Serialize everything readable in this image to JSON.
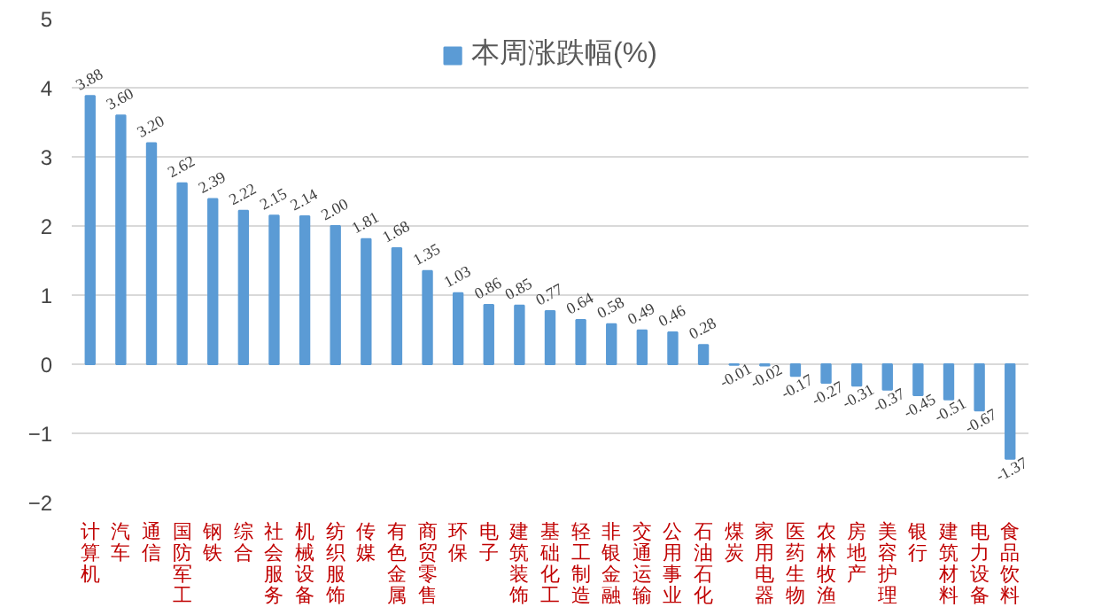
{
  "chart_data": {
    "type": "bar",
    "categories": [
      "计算机",
      "汽车",
      "通信",
      "国防军工",
      "钢铁",
      "综合",
      "社会服务",
      "机械设备",
      "纺织服饰",
      "传媒",
      "有色金属",
      "商贸零售",
      "环保",
      "电子",
      "建筑装饰",
      "基础化工",
      "轻工制造",
      "非银金融",
      "交通运输",
      "公用事业",
      "石油石化",
      "煤炭",
      "家用电器",
      "医药生物",
      "农林牧渔",
      "房地产",
      "美容护理",
      "银行",
      "建筑材料",
      "电力设备",
      "食品饮料"
    ],
    "series": [
      {
        "name": "本周涨跌幅(%)",
        "color": "#5b9bd5",
        "values": [
          3.88,
          3.6,
          3.2,
          2.62,
          2.39,
          2.22,
          2.15,
          2.14,
          2.0,
          1.81,
          1.68,
          1.35,
          1.03,
          0.86,
          0.85,
          0.77,
          0.64,
          0.58,
          0.49,
          0.46,
          0.28,
          -0.01,
          -0.02,
          -0.17,
          -0.27,
          -0.31,
          -0.37,
          -0.45,
          -0.51,
          -0.67,
          -1.37
        ]
      }
    ],
    "ylim": [
      -2,
      5
    ],
    "yticks": [
      -2,
      -1,
      0,
      1,
      2,
      3,
      4,
      5
    ],
    "value_labels": [
      "3.88",
      "3.60",
      "3.20",
      "2.62",
      "2.39",
      "2.22",
      "2.15",
      "2.14",
      "2.00",
      "1.81",
      "1.68",
      "1.35",
      "1.03",
      "0.86",
      "0.85",
      "0.77",
      "0.64",
      "0.58",
      "0.49",
      "0.46",
      "0.28",
      "-0.01",
      "-0.02",
      "-0.17",
      "-0.27",
      "-0.31",
      "-0.37",
      "-0.45",
      "-0.51",
      "-0.67",
      "-1.37"
    ],
    "grid": "y",
    "legend": "top"
  }
}
